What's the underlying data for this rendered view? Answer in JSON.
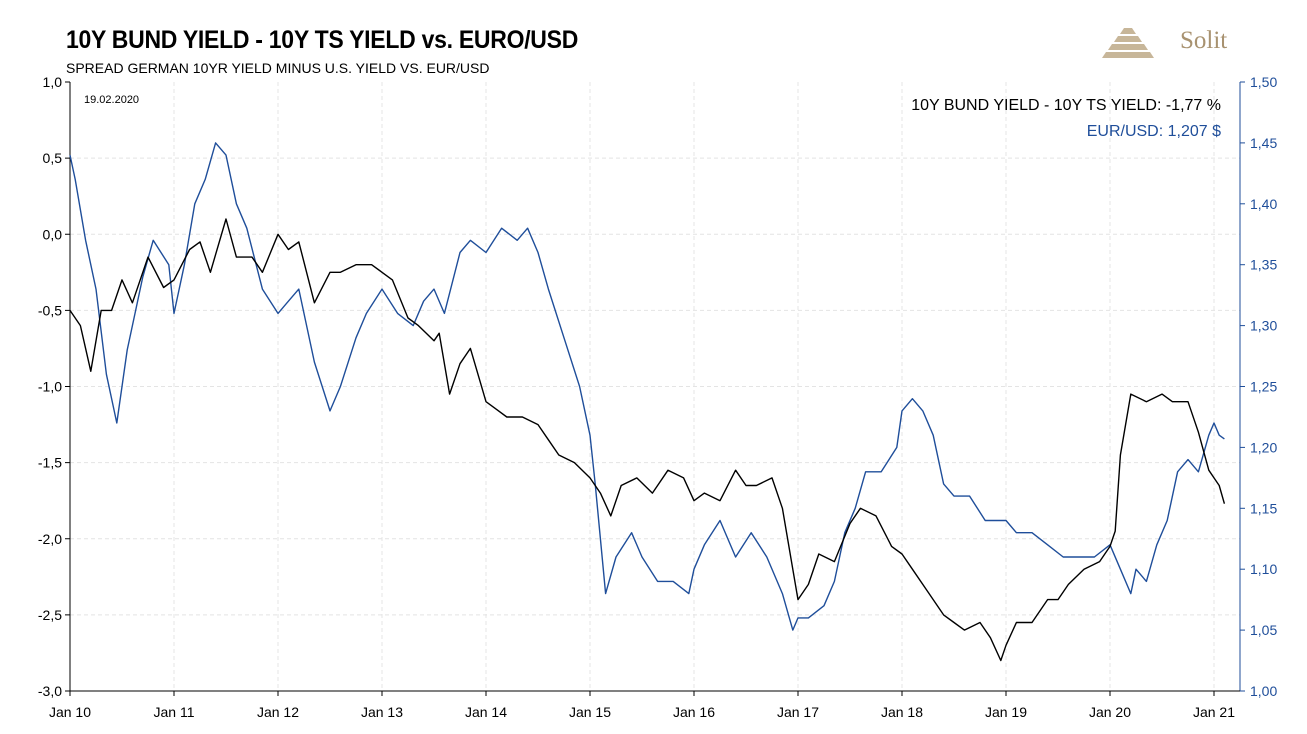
{
  "header": {
    "title": "10Y BUND YIELD - 10Y TS YIELD vs.  EURO/USD",
    "subtitle": "SPREAD GERMAN 10YR YIELD MINUS U.S. YIELD VS.  EUR/USD",
    "brand": "Solit",
    "brand_color": "#a89270"
  },
  "chart_data": {
    "type": "line",
    "date_note": "19.02.2020",
    "x_tick_labels": [
      "Jan 10",
      "Jan 11",
      "Jan 12",
      "Jan 13",
      "Jan 14",
      "Jan 15",
      "Jan 16",
      "Jan 17",
      "Jan 18",
      "Jan 19",
      "Jan 20",
      "Jan 21"
    ],
    "y_left": {
      "ticks": [
        "1,0",
        "0,5",
        "0,0",
        "-0,5",
        "-1,0",
        "-1,5",
        "-2,0",
        "-2,5",
        "-3,0"
      ],
      "ylim": [
        -3.0,
        1.0
      ]
    },
    "y_right": {
      "ticks": [
        "1,50",
        "1,45",
        "1,40",
        "1,35",
        "1,30",
        "1,25",
        "1,20",
        "1,15",
        "1,10",
        "1,05",
        "1,00"
      ],
      "ylim": [
        1.0,
        1.5
      ]
    },
    "grid": true,
    "legend_position": "top-right",
    "legend": {
      "spread_label": "10Y BUND YIELD - 10Y TS YIELD: -1,77 %",
      "eurusd_label": "EUR/USD: 1,207 $"
    },
    "series": [
      {
        "name": "10Y BUND YIELD - 10Y TS YIELD",
        "axis": "left",
        "color": "#000000",
        "x": [
          2010.0,
          2010.1,
          2010.2,
          2010.3,
          2010.4,
          2010.5,
          2010.6,
          2010.75,
          2010.9,
          2011.0,
          2011.15,
          2011.25,
          2011.35,
          2011.5,
          2011.6,
          2011.75,
          2011.85,
          2012.0,
          2012.1,
          2012.2,
          2012.35,
          2012.5,
          2012.6,
          2012.75,
          2012.9,
          2013.0,
          2013.1,
          2013.25,
          2013.35,
          2013.5,
          2013.55,
          2013.65,
          2013.75,
          2013.85,
          2014.0,
          2014.1,
          2014.2,
          2014.35,
          2014.5,
          2014.6,
          2014.7,
          2014.85,
          2015.0,
          2015.1,
          2015.2,
          2015.3,
          2015.45,
          2015.6,
          2015.75,
          2015.9,
          2016.0,
          2016.1,
          2016.25,
          2016.4,
          2016.5,
          2016.6,
          2016.75,
          2016.85,
          2016.95,
          2017.0,
          2017.1,
          2017.2,
          2017.35,
          2017.5,
          2017.6,
          2017.75,
          2017.9,
          2018.0,
          2018.1,
          2018.25,
          2018.4,
          2018.5,
          2018.6,
          2018.75,
          2018.85,
          2018.95,
          2019.0,
          2019.1,
          2019.25,
          2019.4,
          2019.5,
          2019.6,
          2019.75,
          2019.9,
          2020.0,
          2020.05,
          2020.1,
          2020.2,
          2020.35,
          2020.5,
          2020.6,
          2020.75,
          2020.85,
          2020.95,
          2021.0,
          2021.05,
          2021.1
        ],
        "y": [
          -0.5,
          -0.6,
          -0.9,
          -0.5,
          -0.5,
          -0.3,
          -0.45,
          -0.15,
          -0.35,
          -0.3,
          -0.1,
          -0.05,
          -0.25,
          0.1,
          -0.15,
          -0.15,
          -0.25,
          0.0,
          -0.1,
          -0.05,
          -0.45,
          -0.25,
          -0.25,
          -0.2,
          -0.2,
          -0.25,
          -0.3,
          -0.55,
          -0.6,
          -0.7,
          -0.65,
          -1.05,
          -0.85,
          -0.75,
          -1.1,
          -1.15,
          -1.2,
          -1.2,
          -1.25,
          -1.35,
          -1.45,
          -1.5,
          -1.6,
          -1.7,
          -1.85,
          -1.65,
          -1.6,
          -1.7,
          -1.55,
          -1.6,
          -1.75,
          -1.7,
          -1.75,
          -1.55,
          -1.65,
          -1.65,
          -1.6,
          -1.8,
          -2.2,
          -2.4,
          -2.3,
          -2.1,
          -2.15,
          -1.9,
          -1.8,
          -1.85,
          -2.05,
          -2.1,
          -2.2,
          -2.35,
          -2.5,
          -2.55,
          -2.6,
          -2.55,
          -2.65,
          -2.8,
          -2.7,
          -2.55,
          -2.55,
          -2.4,
          -2.4,
          -2.3,
          -2.2,
          -2.15,
          -2.05,
          -1.95,
          -1.45,
          -1.05,
          -1.1,
          -1.05,
          -1.1,
          -1.1,
          -1.3,
          -1.55,
          -1.6,
          -1.65,
          -1.77
        ]
      },
      {
        "name": "EUR/USD",
        "axis": "right",
        "color": "#1f4e9a",
        "x": [
          2010.0,
          2010.05,
          2010.15,
          2010.25,
          2010.35,
          2010.45,
          2010.55,
          2010.7,
          2010.8,
          2010.95,
          2011.0,
          2011.1,
          2011.2,
          2011.3,
          2011.4,
          2011.5,
          2011.6,
          2011.7,
          2011.85,
          2012.0,
          2012.1,
          2012.2,
          2012.35,
          2012.5,
          2012.6,
          2012.75,
          2012.85,
          2013.0,
          2013.15,
          2013.3,
          2013.4,
          2013.5,
          2013.6,
          2013.75,
          2013.85,
          2014.0,
          2014.15,
          2014.3,
          2014.4,
          2014.5,
          2014.6,
          2014.75,
          2014.9,
          2015.0,
          2015.05,
          2015.15,
          2015.25,
          2015.4,
          2015.5,
          2015.65,
          2015.8,
          2015.95,
          2016.0,
          2016.1,
          2016.25,
          2016.4,
          2016.55,
          2016.7,
          2016.85,
          2016.95,
          2017.0,
          2017.1,
          2017.25,
          2017.35,
          2017.45,
          2017.55,
          2017.65,
          2017.8,
          2017.95,
          2018.0,
          2018.1,
          2018.2,
          2018.3,
          2018.4,
          2018.5,
          2018.65,
          2018.8,
          2018.95,
          2019.0,
          2019.1,
          2019.25,
          2019.4,
          2019.55,
          2019.7,
          2019.85,
          2020.0,
          2020.1,
          2020.2,
          2020.25,
          2020.35,
          2020.45,
          2020.55,
          2020.65,
          2020.75,
          2020.85,
          2020.95,
          2021.0,
          2021.05,
          2021.1
        ],
        "y": [
          1.44,
          1.42,
          1.37,
          1.33,
          1.26,
          1.22,
          1.28,
          1.34,
          1.37,
          1.35,
          1.31,
          1.35,
          1.4,
          1.42,
          1.45,
          1.44,
          1.4,
          1.38,
          1.33,
          1.31,
          1.32,
          1.33,
          1.27,
          1.23,
          1.25,
          1.29,
          1.31,
          1.33,
          1.31,
          1.3,
          1.32,
          1.33,
          1.31,
          1.36,
          1.37,
          1.36,
          1.38,
          1.37,
          1.38,
          1.36,
          1.33,
          1.29,
          1.25,
          1.21,
          1.17,
          1.08,
          1.11,
          1.13,
          1.11,
          1.09,
          1.09,
          1.08,
          1.1,
          1.12,
          1.14,
          1.11,
          1.13,
          1.11,
          1.08,
          1.05,
          1.06,
          1.06,
          1.07,
          1.09,
          1.13,
          1.15,
          1.18,
          1.18,
          1.2,
          1.23,
          1.24,
          1.23,
          1.21,
          1.17,
          1.16,
          1.16,
          1.14,
          1.14,
          1.14,
          1.13,
          1.13,
          1.12,
          1.11,
          1.11,
          1.11,
          1.12,
          1.1,
          1.08,
          1.1,
          1.09,
          1.12,
          1.14,
          1.18,
          1.19,
          1.18,
          1.21,
          1.22,
          1.21,
          1.207
        ]
      }
    ]
  }
}
